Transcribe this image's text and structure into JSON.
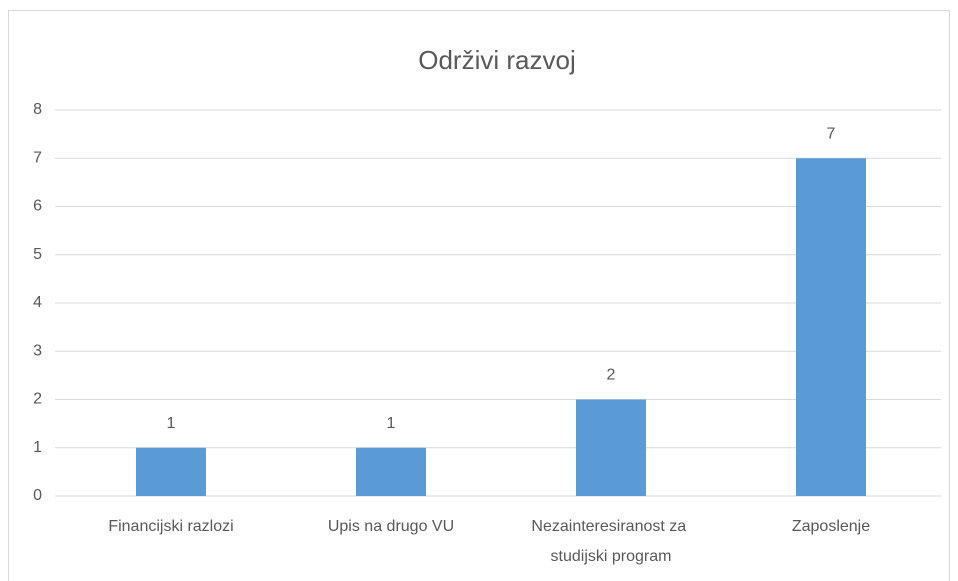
{
  "chart_data": {
    "type": "bar",
    "title": "Održivi razvoj",
    "categories": [
      "Financijski razlozi",
      "Upis na drugo VU",
      "Nezainteresiranost za studijski program",
      "Zaposlenje"
    ],
    "values": [
      1,
      1,
      2,
      7
    ],
    "color": "#5b9bd5",
    "ylim": [
      0,
      8
    ],
    "yticks": [
      0,
      1,
      2,
      3,
      4,
      5,
      6,
      7,
      8
    ],
    "grid": true,
    "data_labels": true
  }
}
